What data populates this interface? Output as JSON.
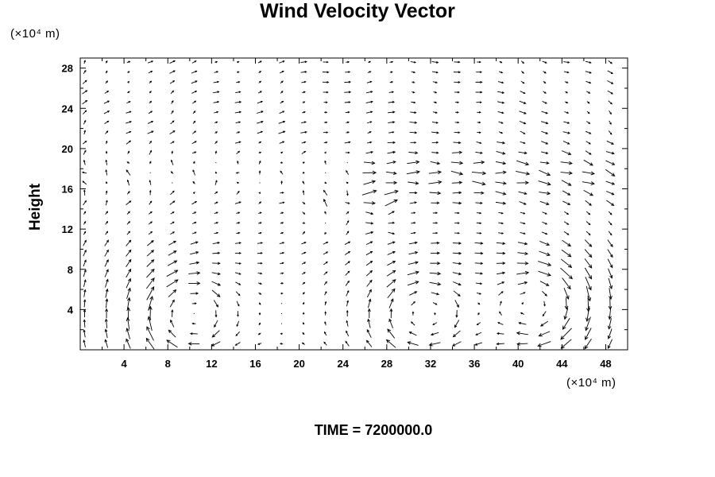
{
  "chart_data": {
    "type": "vector_field",
    "title": "Wind Velocity Vector",
    "ylabel": "Height",
    "xunit": "(×10⁴ m)",
    "yunit": "(×10⁴ m)",
    "xlim": [
      0,
      50
    ],
    "ylim": [
      0,
      29
    ],
    "xticks": [
      4,
      8,
      12,
      16,
      20,
      24,
      28,
      32,
      36,
      40,
      44,
      48
    ],
    "yticks": [
      4,
      8,
      12,
      16,
      20,
      24,
      28
    ],
    "annotation": "TIME = 7200000.0",
    "grid": false,
    "vortices": [
      {
        "x": 9.5,
        "y": 3.5,
        "strength": 1.0,
        "sense": "clockwise"
      },
      {
        "x": 31.0,
        "y": 3.5,
        "strength": 0.9,
        "sense": "clockwise"
      },
      {
        "x": 42.5,
        "y": 4.5,
        "strength": 1.0,
        "sense": "clockwise"
      }
    ],
    "upper_jet": {
      "y_levels": [
        16,
        19,
        20
      ],
      "direction_west": [
        0,
        24
      ],
      "direction_east": [
        25,
        50
      ]
    }
  }
}
